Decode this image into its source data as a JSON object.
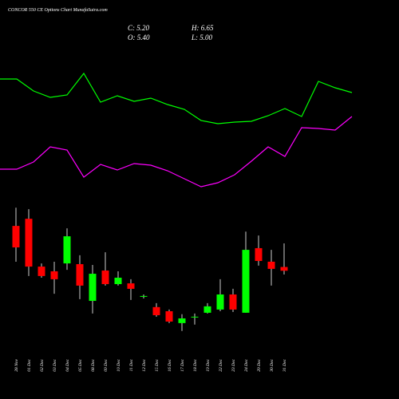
{
  "chart_data": {
    "type": "candlestick",
    "title": "CONCOR 550  CE Options Chart MunafaSutra.com",
    "info": [
      "C: 5.20",
      "H: 6.65",
      "O: 5.40",
      "L: 5.00"
    ],
    "categories": [
      "28 Nov",
      "01 Dec",
      "02 Dec",
      "03 Dec",
      "04 Dec",
      "05 Dec",
      "08 Dec",
      "09 Dec",
      "10 Dec",
      "11 Dec",
      "12 Dec",
      "15 Dec",
      "16 Dec",
      "17 Dec",
      "18 Dec",
      "19 Dec",
      "22 Dec",
      "23 Dec",
      "24 Dec",
      "29 Dec",
      "30 Dec",
      "31 Dec"
    ],
    "open": [
      7.58,
      7.96,
      5.42,
      5.17,
      5.59,
      5.55,
      3.6,
      5.21,
      4.49,
      4.53,
      3.82,
      3.27,
      3.05,
      2.42,
      2.72,
      2.97,
      3.14,
      3.94,
      2.97,
      6.4,
      5.68,
      5.4
    ],
    "high": [
      8.55,
      8.47,
      5.59,
      5.68,
      7.45,
      6.02,
      5.51,
      6.18,
      5.17,
      4.75,
      3.94,
      3.48,
      3.14,
      2.89,
      2.93,
      3.48,
      4.75,
      4.24,
      7.28,
      7.07,
      6.31,
      6.65
    ],
    "low": [
      5.68,
      4.92,
      4.83,
      3.98,
      5.25,
      3.69,
      2.93,
      4.41,
      4.41,
      3.65,
      3.73,
      2.76,
      2.42,
      2.0,
      2.34,
      2.93,
      3.05,
      3.01,
      2.97,
      5.47,
      4.41,
      5.0
    ],
    "close": [
      6.44,
      5.42,
      4.92,
      4.75,
      7.03,
      4.41,
      5.04,
      4.49,
      4.83,
      4.24,
      3.86,
      2.84,
      2.5,
      2.67,
      2.76,
      3.31,
      3.94,
      3.14,
      6.31,
      5.72,
      5.3,
      5.2
    ],
    "up_color": "#00ff00",
    "down_color": "#ff0000",
    "ylim": [
      0,
      10
    ],
    "overlays": {
      "ylim": [
        0,
        300
      ],
      "series": [
        {
          "color": "#00ff00",
          "values": [
            201,
            201,
            186,
            178,
            181,
            208,
            172,
            180,
            173,
            177,
            169,
            163,
            149,
            145,
            147,
            148,
            155,
            164,
            154,
            198,
            190,
            184
          ]
        },
        {
          "color": "#ff00ff",
          "values": [
            88,
            88,
            97,
            116,
            112,
            78,
            94,
            87,
            95,
            93,
            86,
            76,
            66,
            71,
            81,
            98,
            116,
            104,
            140,
            139,
            137,
            154
          ]
        }
      ]
    }
  }
}
